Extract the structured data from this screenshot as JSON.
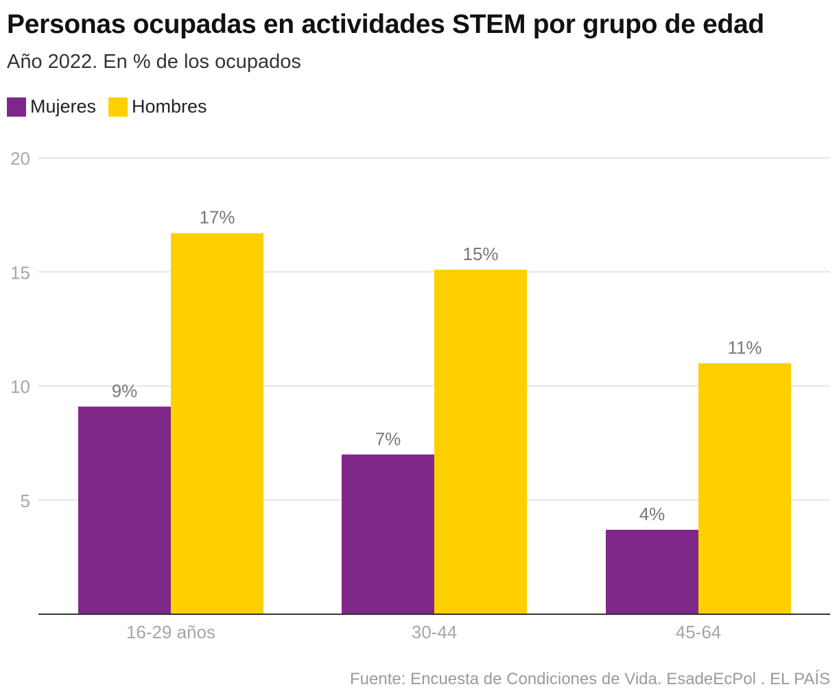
{
  "title": "Personas ocupadas en actividades STEM por grupo de edad",
  "subtitle": "Año 2022. En % de los ocupados",
  "source": "Fuente: Encuesta de Condiciones de Vida. EsadeEcPol . EL PAÍS",
  "legend": [
    {
      "label": "Mujeres",
      "color": "#80278a"
    },
    {
      "label": "Hombres",
      "color": "#ffd000"
    }
  ],
  "chart_data": {
    "type": "bar",
    "categories": [
      "16-29 años",
      "30-44",
      "45-64"
    ],
    "series": [
      {
        "name": "Mujeres",
        "color": "#80278a",
        "values": [
          9.1,
          7.0,
          3.7
        ],
        "labels": [
          "9%",
          "7%",
          "4%"
        ]
      },
      {
        "name": "Hombres",
        "color": "#ffd000",
        "values": [
          16.7,
          15.1,
          11.0
        ],
        "labels": [
          "17%",
          "15%",
          "11%"
        ]
      }
    ],
    "yticks": [
      5,
      10,
      15,
      20
    ],
    "ylim": [
      0,
      20
    ],
    "grid": true,
    "legend_position": "top-left"
  }
}
